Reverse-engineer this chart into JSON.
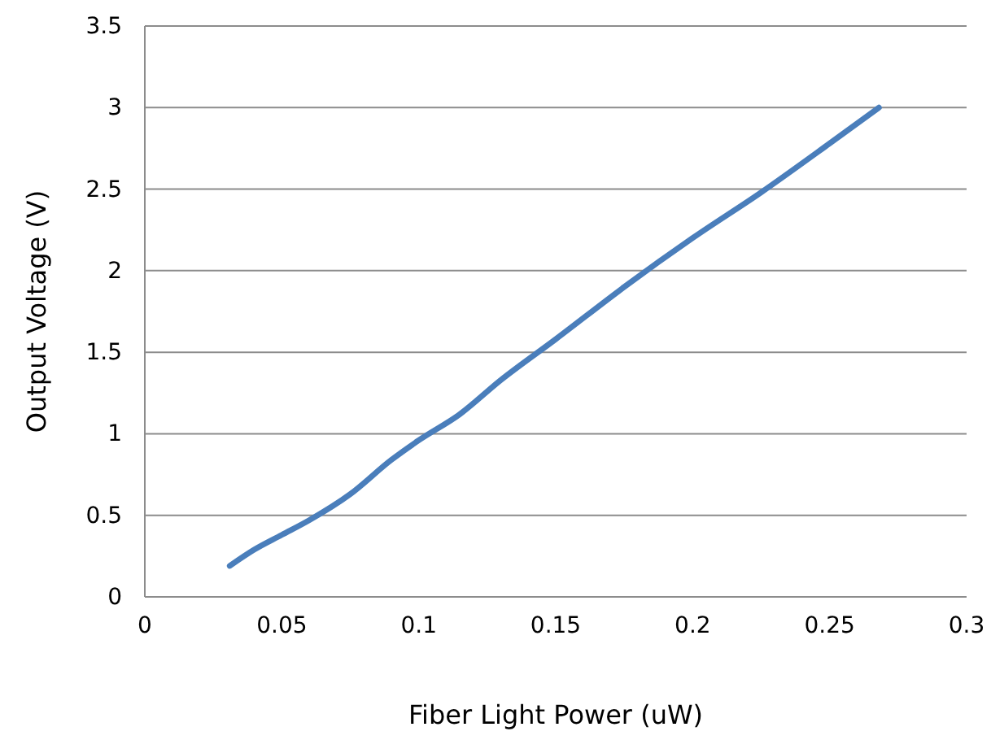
{
  "chart_data": {
    "type": "line",
    "xlabel": "Fiber Light Power (uW)",
    "ylabel": "Output Voltage (V)",
    "x": [
      0.031,
      0.04,
      0.05,
      0.06,
      0.075,
      0.09,
      0.1,
      0.115,
      0.13,
      0.15,
      0.175,
      0.2,
      0.225,
      0.25,
      0.268
    ],
    "series": [
      {
        "color": "#4a7ebb",
        "values": [
          0.19,
          0.29,
          0.38,
          0.47,
          0.63,
          0.84,
          0.96,
          1.12,
          1.33,
          1.58,
          1.9,
          2.2,
          2.48,
          2.78,
          3.0
        ]
      }
    ],
    "xlim": [
      0,
      0.3
    ],
    "xticks": [
      0,
      0.05,
      0.1,
      0.15,
      0.2,
      0.25,
      0.3
    ],
    "ylim": [
      0,
      3.5
    ],
    "yticks": [
      0,
      0.5,
      1,
      1.5,
      2,
      2.5,
      3,
      3.5
    ],
    "grid": "y",
    "marker": "none",
    "line_style": "solid"
  }
}
